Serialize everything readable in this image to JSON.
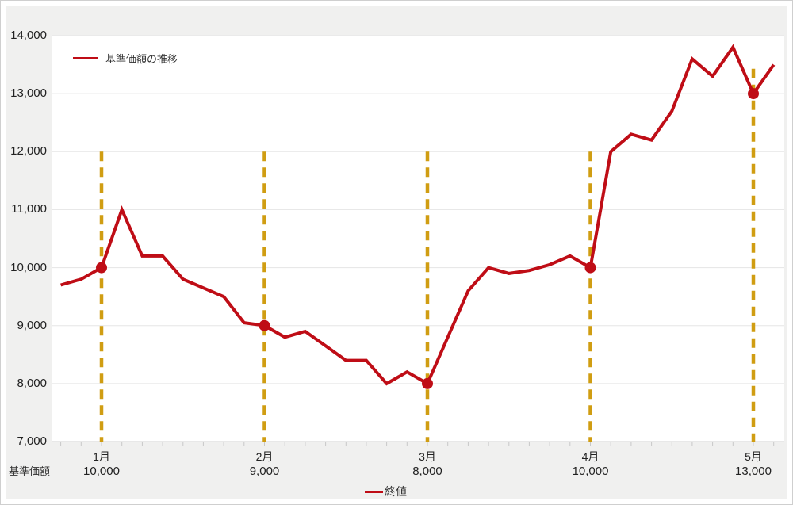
{
  "legend": {
    "series_label": "基準価額の推移",
    "closing_label": "終値"
  },
  "axis_caption": "基準価額",
  "chart_data": {
    "type": "line",
    "title": "",
    "xlabel": "",
    "ylabel": "基準価額",
    "ylim": [
      7000,
      14000
    ],
    "ytick_step": 1000,
    "grid": true,
    "legend_position": "top-left",
    "yticks": [
      {
        "value": 14000,
        "label": "14,000"
      },
      {
        "value": 13000,
        "label": "13,000"
      },
      {
        "value": 12000,
        "label": "12,000"
      },
      {
        "value": 11000,
        "label": "11,000"
      },
      {
        "value": 10000,
        "label": "10,000"
      },
      {
        "value": 9000,
        "label": "9,000"
      },
      {
        "value": 8000,
        "label": "8,000"
      },
      {
        "value": 7000,
        "label": "7,000"
      }
    ],
    "series": [
      {
        "name": "基準価額の推移",
        "points": [
          [
            0.75,
            9700
          ],
          [
            0.875,
            9800
          ],
          [
            1.0,
            10000
          ],
          [
            1.125,
            11000
          ],
          [
            1.25,
            10200
          ],
          [
            1.375,
            10200
          ],
          [
            1.5,
            9800
          ],
          [
            1.625,
            9650
          ],
          [
            1.75,
            9500
          ],
          [
            1.875,
            9050
          ],
          [
            2.0,
            9000
          ],
          [
            2.125,
            8800
          ],
          [
            2.25,
            8900
          ],
          [
            2.375,
            8650
          ],
          [
            2.5,
            8400
          ],
          [
            2.625,
            8400
          ],
          [
            2.75,
            8000
          ],
          [
            2.875,
            8200
          ],
          [
            3.0,
            8000
          ],
          [
            3.125,
            8800
          ],
          [
            3.25,
            9600
          ],
          [
            3.375,
            10000
          ],
          [
            3.5,
            9900
          ],
          [
            3.625,
            9950
          ],
          [
            3.75,
            10050
          ],
          [
            3.875,
            10200
          ],
          [
            4.0,
            10000
          ],
          [
            4.125,
            12000
          ],
          [
            4.25,
            12300
          ],
          [
            4.375,
            12200
          ],
          [
            4.5,
            12700
          ],
          [
            4.625,
            13600
          ],
          [
            4.75,
            13300
          ],
          [
            4.875,
            13800
          ],
          [
            5.0,
            13000
          ],
          [
            5.125,
            13500
          ]
        ]
      }
    ],
    "markers": [
      {
        "month": 1,
        "month_label": "1月",
        "value": 10000,
        "value_label": "10,000",
        "dash_top_value": 12000
      },
      {
        "month": 2,
        "month_label": "2月",
        "value": 9000,
        "value_label": "9,000",
        "dash_top_value": 12000
      },
      {
        "month": 3,
        "month_label": "3月",
        "value": 8000,
        "value_label": "8,000",
        "dash_top_value": 12000
      },
      {
        "month": 4,
        "month_label": "4月",
        "value": 10000,
        "value_label": "10,000",
        "dash_top_value": 12000
      },
      {
        "month": 5,
        "month_label": "5月",
        "value": 13000,
        "value_label": "13,000",
        "dash_top_value": 13430
      }
    ],
    "colors": {
      "line": "#bf0d16",
      "marker": "#bf0d16",
      "dashed": "#d09d12",
      "grid": "#e5e5e5",
      "axis": "#d0d0d0",
      "tick": "#c8c8c8",
      "panel": "#f0f0ef",
      "plot_background": "#ffffff",
      "text": "#222222"
    }
  }
}
